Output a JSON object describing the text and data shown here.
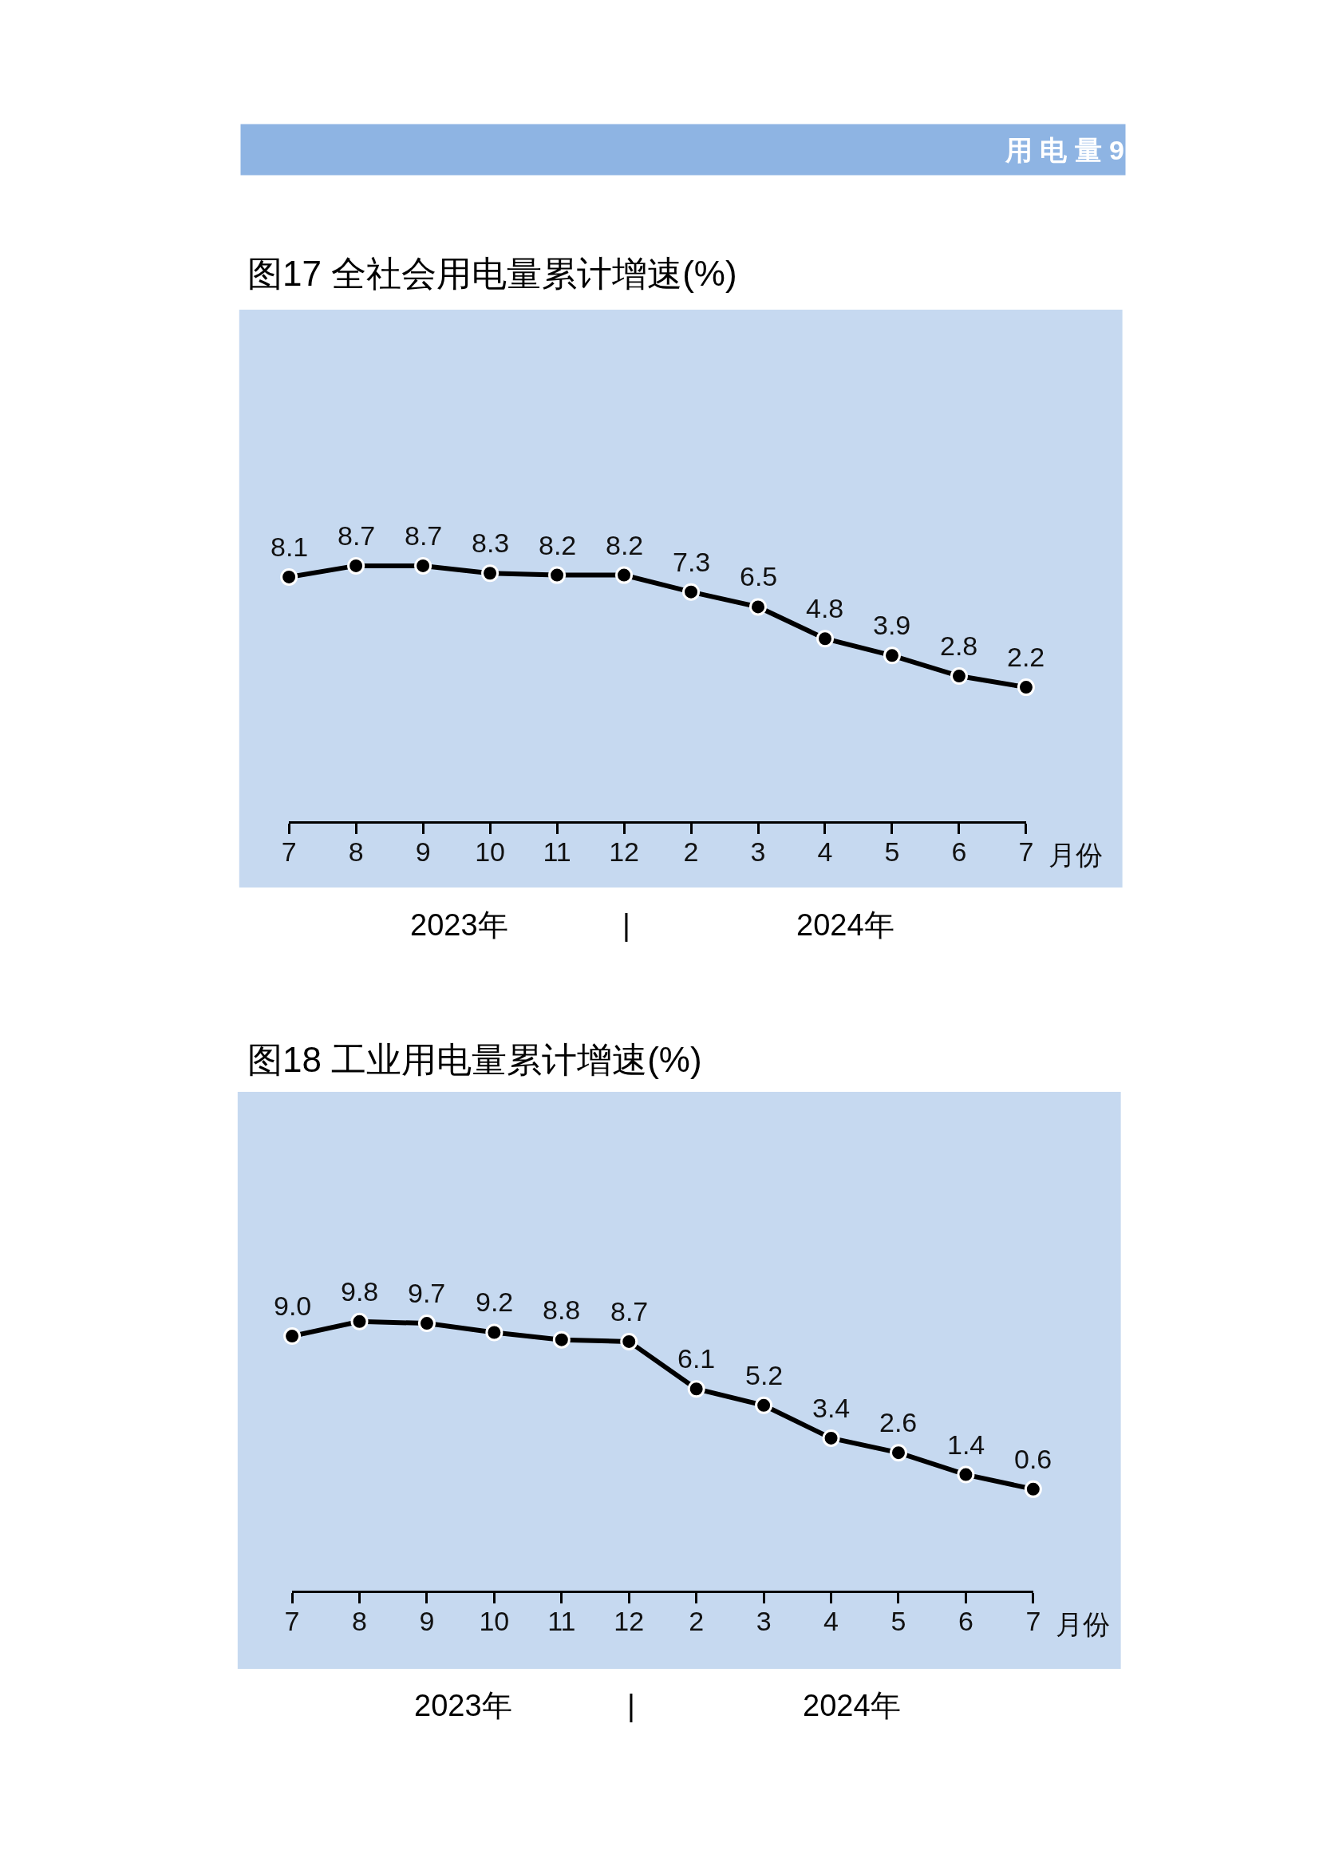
{
  "chart_data": [
    {
      "type": "line",
      "title": "图17 全社会用电量累计增速(%)",
      "xlabel": "月份",
      "categories": [
        "7",
        "8",
        "9",
        "10",
        "11",
        "12",
        "2",
        "3",
        "4",
        "5",
        "6",
        "7"
      ],
      "series": [
        {
          "color": "#000000",
          "values": [
            8.1,
            8.7,
            8.7,
            8.3,
            8.2,
            8.2,
            7.3,
            6.5,
            4.8,
            3.9,
            2.8,
            2.2
          ],
          "value_labels": [
            "8.1",
            "8.7",
            "8.7",
            "8.3",
            "8.2",
            "8.2",
            "7.3",
            "6.5",
            "4.8",
            "3.9",
            "2.8",
            "2.2"
          ]
        }
      ],
      "marker": "circle",
      "line_style": "solid",
      "tick_labels": "x",
      "annotations": [
        "用 电 量 9",
        "2023年",
        "|",
        "2024年"
      ]
    },
    {
      "type": "line",
      "title": "图18 工业用电量累计增速(%)",
      "xlabel": "月份",
      "categories": [
        "7",
        "8",
        "9",
        "10",
        "11",
        "12",
        "2",
        "3",
        "4",
        "5",
        "6",
        "7"
      ],
      "series": [
        {
          "color": "#000000",
          "values": [
            9.0,
            9.8,
            9.7,
            9.2,
            8.8,
            8.7,
            6.1,
            5.2,
            3.4,
            2.6,
            1.4,
            0.6
          ],
          "value_labels": [
            "9.0",
            "9.8",
            "9.7",
            "9.2",
            "8.8",
            "8.7",
            "6.1",
            "5.2",
            "3.4",
            "2.6",
            "1.4",
            "0.6"
          ]
        }
      ],
      "marker": "circle",
      "line_style": "solid",
      "tick_labels": "x",
      "annotations": [
        "2023年",
        "|",
        "2024年"
      ]
    }
  ]
}
